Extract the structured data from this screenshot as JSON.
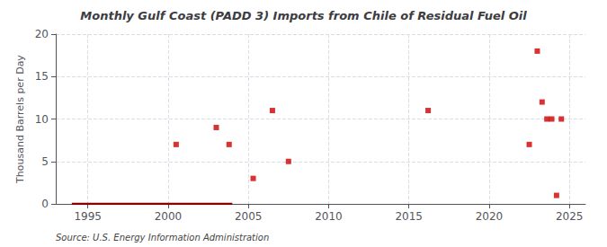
{
  "chart_data": {
    "type": "scatter",
    "title": "Monthly Gulf Coast (PADD 3) Imports from Chile of Residual Fuel Oil",
    "ylabel": "Thousand Barrels per Day",
    "annotation": "Source: U.S. Energy Information Administration",
    "xlim": [
      1993,
      2026
    ],
    "xticks": [
      1995,
      2000,
      2005,
      2010,
      2015,
      2020,
      2025
    ],
    "ylim": [
      0,
      20
    ],
    "yticks": [
      0,
      5,
      10,
      15,
      20
    ],
    "grid": true,
    "series": [
      {
        "type": "line",
        "color": "#8b0000",
        "line_style": "solid",
        "x": [
          1994,
          2004
        ],
        "values": [
          0,
          0
        ]
      },
      {
        "type": "scatter",
        "color": "#cc0000",
        "marker": "square",
        "x": [
          2000.5,
          2003.0,
          2003.8,
          2005.3,
          2006.5,
          2007.5,
          2016.2,
          2022.5,
          2023.0,
          2023.3,
          2023.6,
          2023.9,
          2024.2,
          2024.5
        ],
        "values": [
          7.0,
          9.0,
          7.0,
          3.0,
          11.0,
          5.0,
          11.0,
          7.0,
          18.0,
          12.0,
          10.0,
          10.0,
          1.0,
          10.0
        ]
      }
    ]
  }
}
